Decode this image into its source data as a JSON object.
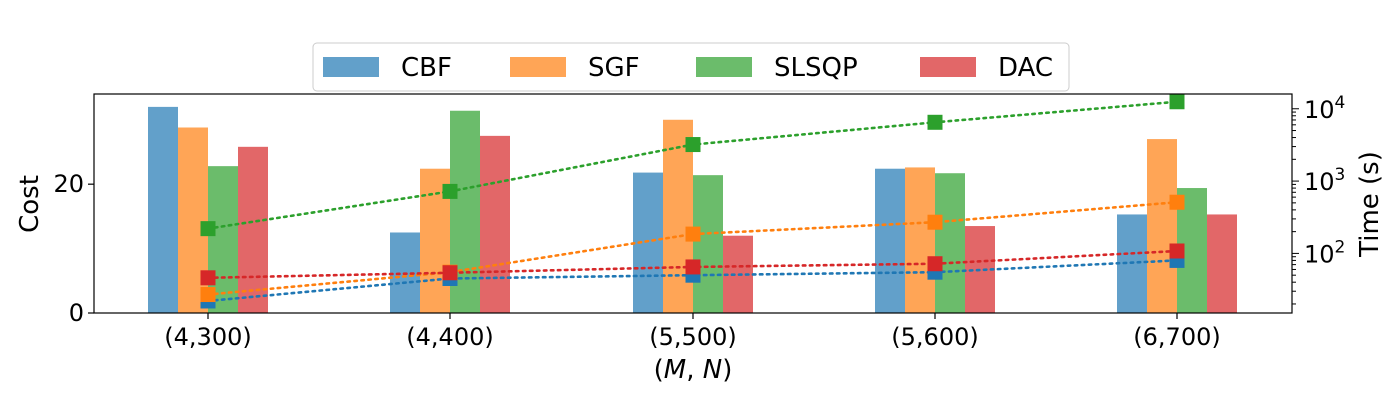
{
  "chart_data": {
    "type": "bar",
    "categories": [
      "(4,300)",
      "(4,400)",
      "(5,500)",
      "(5,600)",
      "(6,700)"
    ],
    "xlabel": "(M, N)",
    "ylabel": "Cost",
    "y2label": "Time (s)",
    "ylim": [
      0,
      34
    ],
    "yticks": [
      0,
      20
    ],
    "y2scale": "log",
    "y2lim": [
      15,
      16000
    ],
    "y2ticks": [
      {
        "value": 100,
        "base": "10",
        "exp": "2"
      },
      {
        "value": 1000,
        "base": "10",
        "exp": "3"
      },
      {
        "value": 10000,
        "base": "10",
        "exp": "4"
      }
    ],
    "legend_position": "top-center",
    "grid": false,
    "series": [
      {
        "name": "CBF",
        "bar_color": "#1f77b4",
        "line_color": "#1f77b4",
        "values": [
          32.0,
          12.5,
          21.8,
          22.4,
          15.3
        ],
        "time": [
          22,
          45,
          50,
          55,
          80
        ]
      },
      {
        "name": "SGF",
        "bar_color": "#ff7f0e",
        "line_color": "#ff7f0e",
        "values": [
          28.8,
          22.4,
          30.0,
          22.6,
          27.0
        ],
        "time": [
          27,
          55,
          185,
          270,
          510
        ]
      },
      {
        "name": "SLSQP",
        "bar_color": "#2ca02c",
        "line_color": "#2ca02c",
        "values": [
          22.8,
          31.4,
          21.4,
          21.7,
          19.4
        ],
        "time": [
          220,
          720,
          3200,
          6500,
          12500
        ]
      },
      {
        "name": "DAC",
        "bar_color": "#d62728",
        "line_color": "#d62728",
        "values": [
          25.8,
          27.5,
          12.0,
          13.5,
          15.3
        ],
        "time": [
          46,
          54,
          65,
          72,
          108
        ]
      }
    ]
  }
}
